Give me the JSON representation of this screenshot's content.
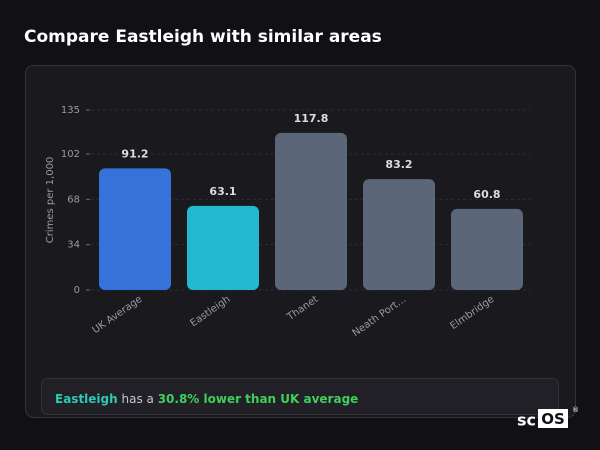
{
  "header": {
    "title": "Compare Eastleigh with similar areas"
  },
  "chart_data": {
    "type": "bar",
    "y_label": "Crimes per 1,000",
    "categories": [
      "UK Average",
      "Eastleigh",
      "Thanet",
      "Neath Port…",
      "Elmbridge"
    ],
    "values": [
      91.2,
      63.1,
      117.8,
      83.2,
      60.8
    ],
    "colors": [
      "#3573db",
      "#22b9d0",
      "#5b6679",
      "#5b6679",
      "#5b6679"
    ],
    "ylim": [
      0,
      135
    ],
    "yticks": [
      0,
      34,
      68,
      102,
      135
    ],
    "grid": true
  },
  "summary": {
    "area": "Eastleigh",
    "text": " has a ",
    "highlight": "30.8% lower than UK average"
  },
  "brand": {
    "prefix": "sc",
    "boxed": "OS",
    "mark": "®"
  }
}
